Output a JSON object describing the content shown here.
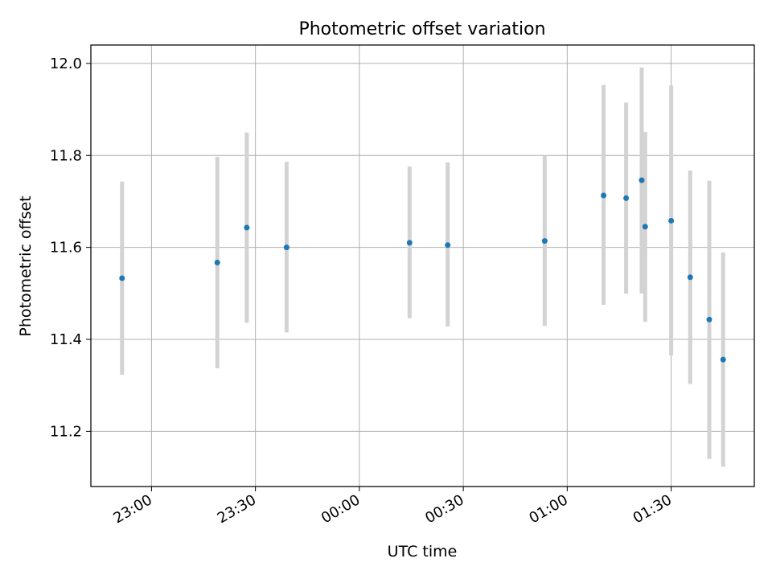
{
  "chart_data": {
    "type": "scatter",
    "title": "Photometric offset variation",
    "xlabel": "UTC time",
    "ylabel": "Photometric offset",
    "x_unit": "UTC time",
    "xlim": [
      "22:42:30",
      "01:54:00"
    ],
    "ylim": [
      11.08,
      12.04
    ],
    "x_ticks": [
      "23:00",
      "23:30",
      "00:00",
      "00:30",
      "01:00",
      "01:30"
    ],
    "y_ticks": [
      11.2,
      11.4,
      11.6,
      11.8,
      12.0
    ],
    "grid": true,
    "legend": "none",
    "marker_color": "#1f77b4",
    "errorbar_color": "#d3d3d3",
    "points": [
      {
        "x": "22:51:30",
        "y": 11.533,
        "ylow": 11.323,
        "yhigh": 11.743
      },
      {
        "x": "23:19:00",
        "y": 11.567,
        "ylow": 11.337,
        "yhigh": 11.797
      },
      {
        "x": "23:27:30",
        "y": 11.643,
        "ylow": 11.436,
        "yhigh": 11.85
      },
      {
        "x": "23:39:00",
        "y": 11.6,
        "ylow": 11.415,
        "yhigh": 11.786
      },
      {
        "x": "00:14:30",
        "y": 11.61,
        "ylow": 11.446,
        "yhigh": 11.776
      },
      {
        "x": "00:25:30",
        "y": 11.605,
        "ylow": 11.428,
        "yhigh": 11.785
      },
      {
        "x": "00:53:30",
        "y": 11.614,
        "ylow": 11.429,
        "yhigh": 11.8
      },
      {
        "x": "01:10:30",
        "y": 11.713,
        "ylow": 11.475,
        "yhigh": 11.953
      },
      {
        "x": "01:17:00",
        "y": 11.707,
        "ylow": 11.499,
        "yhigh": 11.915
      },
      {
        "x": "01:21:30",
        "y": 11.746,
        "ylow": 11.5,
        "yhigh": 11.991
      },
      {
        "x": "01:22:30",
        "y": 11.645,
        "ylow": 11.438,
        "yhigh": 11.851
      },
      {
        "x": "01:30:00",
        "y": 11.658,
        "ylow": 11.365,
        "yhigh": 11.952
      },
      {
        "x": "01:35:30",
        "y": 11.535,
        "ylow": 11.303,
        "yhigh": 11.767
      },
      {
        "x": "01:41:00",
        "y": 11.443,
        "ylow": 11.14,
        "yhigh": 11.745
      },
      {
        "x": "01:45:00",
        "y": 11.356,
        "ylow": 11.123,
        "yhigh": 11.589
      }
    ]
  }
}
